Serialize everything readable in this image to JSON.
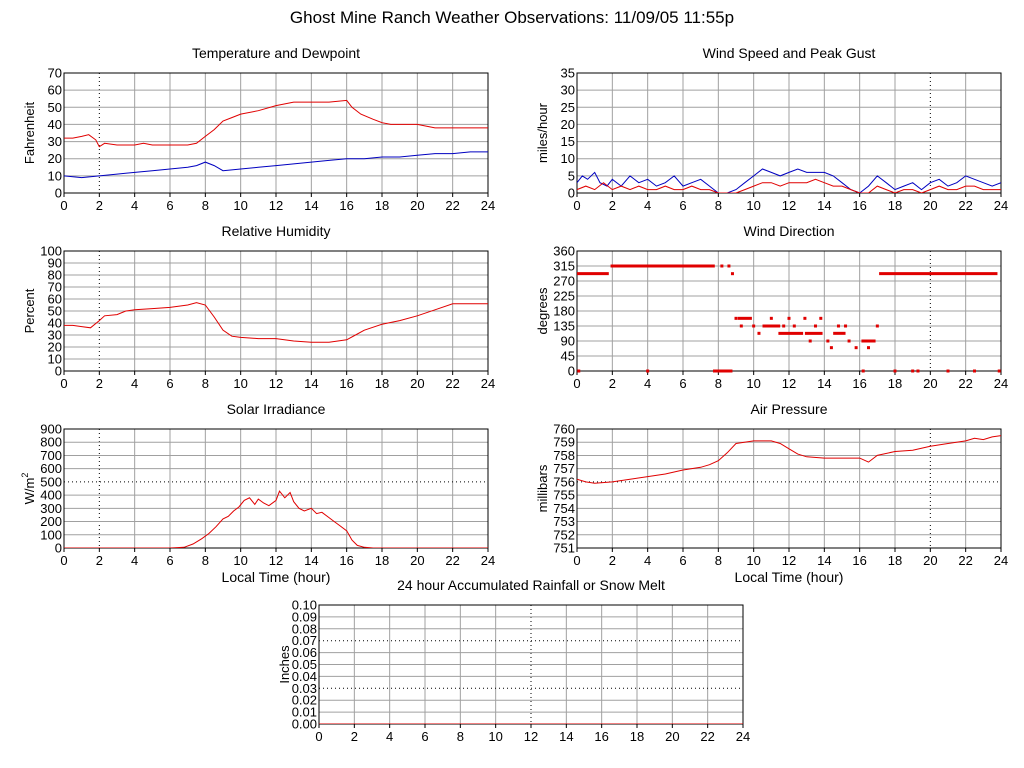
{
  "title": "Ghost Mine Ranch Weather Observations: 11/09/05 11:55p",
  "chart_data": [
    {
      "id": "temp",
      "type": "line",
      "title": "Temperature and Dewpoint",
      "ylabel": "Fahrenheit",
      "xlabel": "",
      "xlim": [
        0,
        24
      ],
      "ylim": [
        0,
        70
      ],
      "yticks": [
        "0",
        "10",
        "20",
        "30",
        "40",
        "50",
        "60",
        "70"
      ],
      "xticks": [
        "0",
        "2",
        "4",
        "6",
        "8",
        "10",
        "12",
        "14",
        "16",
        "18",
        "20",
        "22",
        "24"
      ],
      "dotted_x": [
        2
      ],
      "dotted_y": [],
      "series": [
        {
          "color": "#e00000",
          "x": [
            0,
            0.5,
            1,
            1.4,
            1.8,
            2,
            2.3,
            3,
            3.5,
            4,
            4.5,
            5,
            6,
            7,
            7.5,
            8,
            8.5,
            9,
            9.5,
            10,
            11,
            12,
            13,
            14,
            15,
            16,
            16.3,
            16.8,
            17.5,
            18,
            18.5,
            19,
            20,
            21,
            22,
            23,
            24
          ],
          "y": [
            32,
            32,
            33,
            34,
            31,
            27,
            29,
            28,
            28,
            28,
            29,
            28,
            28,
            28,
            29,
            33,
            37,
            42,
            44,
            46,
            48,
            51,
            53,
            53,
            53,
            54,
            50,
            46,
            43,
            41,
            40,
            40,
            40,
            38,
            38,
            38,
            38
          ]
        },
        {
          "color": "#0000c0",
          "x": [
            0,
            1,
            2,
            3,
            4,
            5,
            6,
            7,
            7.5,
            8,
            8.5,
            9,
            10,
            11,
            12,
            13,
            14,
            15,
            16,
            17,
            18,
            19,
            20,
            21,
            22,
            23,
            24
          ],
          "y": [
            10,
            9,
            10,
            11,
            12,
            13,
            14,
            15,
            16,
            18,
            16,
            13,
            14,
            15,
            16,
            17,
            18,
            19,
            20,
            20,
            21,
            21,
            22,
            23,
            23,
            24,
            24
          ]
        }
      ]
    },
    {
      "id": "wind",
      "type": "line",
      "title": "Wind Speed and Peak Gust",
      "ylabel": "miles/hour",
      "xlabel": "",
      "xlim": [
        0,
        24
      ],
      "ylim": [
        0,
        35
      ],
      "yticks": [
        "0",
        "5",
        "10",
        "15",
        "20",
        "25",
        "30",
        "35"
      ],
      "xticks": [
        "0",
        "2",
        "4",
        "6",
        "8",
        "10",
        "12",
        "14",
        "16",
        "18",
        "20",
        "22",
        "24"
      ],
      "dotted_x": [
        20
      ],
      "dotted_y": [],
      "series": [
        {
          "color": "#0000c0",
          "x": [
            0,
            0.3,
            0.6,
            1,
            1.3,
            1.7,
            2,
            2.5,
            3,
            3.5,
            4,
            4.5,
            5,
            5.5,
            6,
            6.5,
            7,
            7.5,
            8,
            8.5,
            9,
            9.5,
            10,
            10.5,
            11,
            11.5,
            12,
            12.5,
            13,
            13.5,
            14,
            14.5,
            15,
            15.5,
            16,
            16.5,
            17,
            17.5,
            18,
            18.5,
            19,
            19.5,
            20,
            20.5,
            21,
            21.5,
            22,
            22.5,
            23,
            23.5,
            24
          ],
          "y": [
            3,
            5,
            4,
            6,
            3,
            2,
            4,
            2,
            5,
            3,
            4,
            2,
            3,
            5,
            2,
            3,
            4,
            2,
            0,
            0,
            1,
            3,
            5,
            7,
            6,
            5,
            6,
            7,
            6,
            6,
            6,
            5,
            3,
            1,
            0,
            2,
            5,
            3,
            1,
            2,
            3,
            1,
            3,
            4,
            2,
            3,
            5,
            4,
            3,
            2,
            3
          ]
        },
        {
          "color": "#e00000",
          "x": [
            0,
            0.5,
            1,
            1.5,
            2,
            2.5,
            3,
            3.5,
            4,
            4.5,
            5,
            5.5,
            6,
            6.5,
            7,
            7.5,
            8,
            8.5,
            9,
            9.5,
            10,
            10.5,
            11,
            11.5,
            12,
            12.5,
            13,
            13.5,
            14,
            14.5,
            15,
            15.5,
            16,
            16.5,
            17,
            17.5,
            18,
            18.5,
            19,
            19.5,
            20,
            20.5,
            21,
            21.5,
            22,
            22.5,
            23,
            23.5,
            24
          ],
          "y": [
            1,
            2,
            1,
            3,
            1,
            2,
            1,
            2,
            1,
            1,
            2,
            1,
            1,
            2,
            1,
            1,
            0,
            0,
            0,
            1,
            2,
            3,
            3,
            2,
            3,
            3,
            3,
            4,
            3,
            2,
            2,
            1,
            0,
            0,
            2,
            1,
            0,
            1,
            1,
            0,
            1,
            2,
            1,
            1,
            2,
            2,
            1,
            1,
            1
          ]
        }
      ]
    },
    {
      "id": "humidity",
      "type": "line",
      "title": "Relative Humidity",
      "ylabel": "Percent",
      "xlabel": "",
      "xlim": [
        0,
        24
      ],
      "ylim": [
        0,
        100
      ],
      "yticks": [
        "0",
        "10",
        "20",
        "30",
        "40",
        "50",
        "60",
        "70",
        "80",
        "90",
        "100"
      ],
      "xticks": [
        "0",
        "2",
        "4",
        "6",
        "8",
        "10",
        "12",
        "14",
        "16",
        "18",
        "20",
        "22",
        "24"
      ],
      "dotted_x": [
        2
      ],
      "dotted_y": [],
      "series": [
        {
          "color": "#e00000",
          "x": [
            0,
            0.5,
            1,
            1.5,
            2,
            2.3,
            3,
            3.5,
            4,
            5,
            6,
            7,
            7.5,
            8,
            8.5,
            9,
            9.5,
            10,
            11,
            12,
            13,
            14,
            15,
            16,
            16.5,
            17,
            18,
            19,
            20,
            21,
            22,
            23,
            24
          ],
          "y": [
            38,
            38,
            37,
            36,
            42,
            46,
            47,
            50,
            51,
            52,
            53,
            55,
            57,
            55,
            45,
            34,
            29,
            28,
            27,
            27,
            25,
            24,
            24,
            26,
            30,
            34,
            39,
            42,
            46,
            51,
            56,
            56,
            56
          ]
        }
      ]
    },
    {
      "id": "direction",
      "type": "scatter",
      "title": "Wind Direction",
      "ylabel": "degrees",
      "xlabel": "",
      "xlim": [
        0,
        24
      ],
      "ylim": [
        0,
        360
      ],
      "yticks": [
        "0",
        "45",
        "90",
        "135",
        "180",
        "225",
        "270",
        "315",
        "360"
      ],
      "xticks": [
        "0",
        "2",
        "4",
        "6",
        "8",
        "10",
        "12",
        "14",
        "16",
        "18",
        "20",
        "22",
        "24"
      ],
      "dotted_x": [
        20
      ],
      "dotted_y": [],
      "segments": [
        {
          "x0": 0,
          "x1": 1.8,
          "y": 292
        },
        {
          "x0": 1.9,
          "x1": 7.8,
          "y": 315
        },
        {
          "x0": 17.1,
          "x1": 23.8,
          "y": 292
        },
        {
          "x0": 7.7,
          "x1": 8.8,
          "y": 0
        },
        {
          "x0": 9.1,
          "x1": 9.9,
          "y": 158
        },
        {
          "x0": 10.5,
          "x1": 11.5,
          "y": 135
        },
        {
          "x0": 11.4,
          "x1": 12.8,
          "y": 113
        },
        {
          "x0": 12.9,
          "x1": 13.9,
          "y": 113
        },
        {
          "x0": 14.5,
          "x1": 15.2,
          "y": 113
        },
        {
          "x0": 16.1,
          "x1": 16.9,
          "y": 90
        }
      ],
      "x": [
        0.1,
        4,
        8.2,
        8.8,
        8.6,
        9,
        9.3,
        10,
        10.3,
        10.7,
        11,
        11.7,
        12,
        12.3,
        12.9,
        13.2,
        13.5,
        13.8,
        14.2,
        14.4,
        14.8,
        15.2,
        15.4,
        15.8,
        16.2,
        16.5,
        17,
        18,
        19,
        19.3,
        21,
        22.5,
        23.9
      ],
      "y": [
        0,
        0,
        315,
        292,
        315,
        158,
        135,
        135,
        113,
        135,
        158,
        135,
        158,
        135,
        158,
        90,
        135,
        158,
        90,
        70,
        135,
        135,
        90,
        70,
        0,
        70,
        135,
        0,
        0,
        0,
        0,
        0,
        0
      ],
      "series_color": "#e00000"
    },
    {
      "id": "solar",
      "type": "line",
      "title": "Solar Irradiance",
      "ylabel": "W/m",
      "ylabel_sup": "2",
      "xlabel": "Local Time (hour)",
      "xlim": [
        0,
        24
      ],
      "ylim": [
        0,
        900
      ],
      "yticks": [
        "0",
        "100",
        "200",
        "300",
        "400",
        "500",
        "600",
        "700",
        "800",
        "900"
      ],
      "xticks": [
        "0",
        "2",
        "4",
        "6",
        "8",
        "10",
        "12",
        "14",
        "16",
        "18",
        "20",
        "22",
        "24"
      ],
      "dotted_x": [
        2
      ],
      "dotted_y": [
        500
      ],
      "series": [
        {
          "color": "#e00000",
          "x": [
            0,
            6,
            6.8,
            7.3,
            7.8,
            8.2,
            8.6,
            9,
            9.3,
            9.6,
            9.9,
            10.2,
            10.5,
            10.8,
            11,
            11.3,
            11.6,
            12,
            12.2,
            12.5,
            12.8,
            13,
            13.3,
            13.6,
            14,
            14.3,
            14.6,
            15,
            15.3,
            15.6,
            16,
            16.3,
            16.6,
            17,
            17.5,
            24
          ],
          "y": [
            0,
            0,
            5,
            30,
            70,
            110,
            160,
            220,
            240,
            280,
            310,
            360,
            380,
            330,
            370,
            340,
            320,
            360,
            430,
            380,
            420,
            350,
            300,
            280,
            300,
            260,
            270,
            230,
            200,
            170,
            130,
            60,
            20,
            5,
            0,
            0
          ]
        }
      ]
    },
    {
      "id": "pressure",
      "type": "line",
      "title": "Air Pressure",
      "ylabel": "millibars",
      "xlabel": "Local Time (hour)",
      "xlim": [
        0,
        24
      ],
      "ylim": [
        751,
        760
      ],
      "yticks": [
        "751",
        "752",
        "753",
        "754",
        "755",
        "756",
        "757",
        "758",
        "759",
        "760"
      ],
      "xticks": [
        "0",
        "2",
        "4",
        "6",
        "8",
        "10",
        "12",
        "14",
        "16",
        "18",
        "20",
        "22",
        "24"
      ],
      "dotted_x": [
        20
      ],
      "dotted_y": [
        756
      ],
      "series": [
        {
          "color": "#e00000",
          "x": [
            0,
            0.5,
            1,
            2,
            3,
            4,
            5,
            6,
            7,
            7.5,
            8,
            8.5,
            9,
            10,
            11,
            11.5,
            12,
            12.5,
            13,
            14,
            15,
            16,
            16.5,
            17,
            18,
            19,
            20,
            21,
            22,
            22.5,
            23,
            23.5,
            24
          ],
          "y": [
            756.2,
            756,
            755.9,
            756,
            756.2,
            756.4,
            756.6,
            756.9,
            757.1,
            757.3,
            757.6,
            758.2,
            758.9,
            759.1,
            759.1,
            758.9,
            758.5,
            758.1,
            757.9,
            757.8,
            757.8,
            757.8,
            757.5,
            758,
            758.3,
            758.4,
            758.7,
            758.9,
            759.1,
            759.3,
            759.2,
            759.4,
            759.5
          ]
        }
      ]
    },
    {
      "id": "rain",
      "type": "line",
      "title": "24 hour Accumulated Rainfall or Snow Melt",
      "ylabel": "Inches",
      "xlabel": "",
      "xlim": [
        0,
        24
      ],
      "ylim": [
        0,
        0.1
      ],
      "yticks": [
        "0.00",
        "0.01",
        "0.02",
        "0.03",
        "0.04",
        "0.05",
        "0.06",
        "0.07",
        "0.08",
        "0.09",
        "0.10"
      ],
      "xticks": [
        "0",
        "2",
        "4",
        "6",
        "8",
        "10",
        "12",
        "14",
        "16",
        "18",
        "20",
        "22",
        "24"
      ],
      "dotted_x": [
        12
      ],
      "dotted_y": [
        0.03,
        0.07
      ],
      "series": [
        {
          "color": "#e00000",
          "x": [
            0,
            24
          ],
          "y": [
            0,
            0
          ]
        }
      ]
    }
  ]
}
